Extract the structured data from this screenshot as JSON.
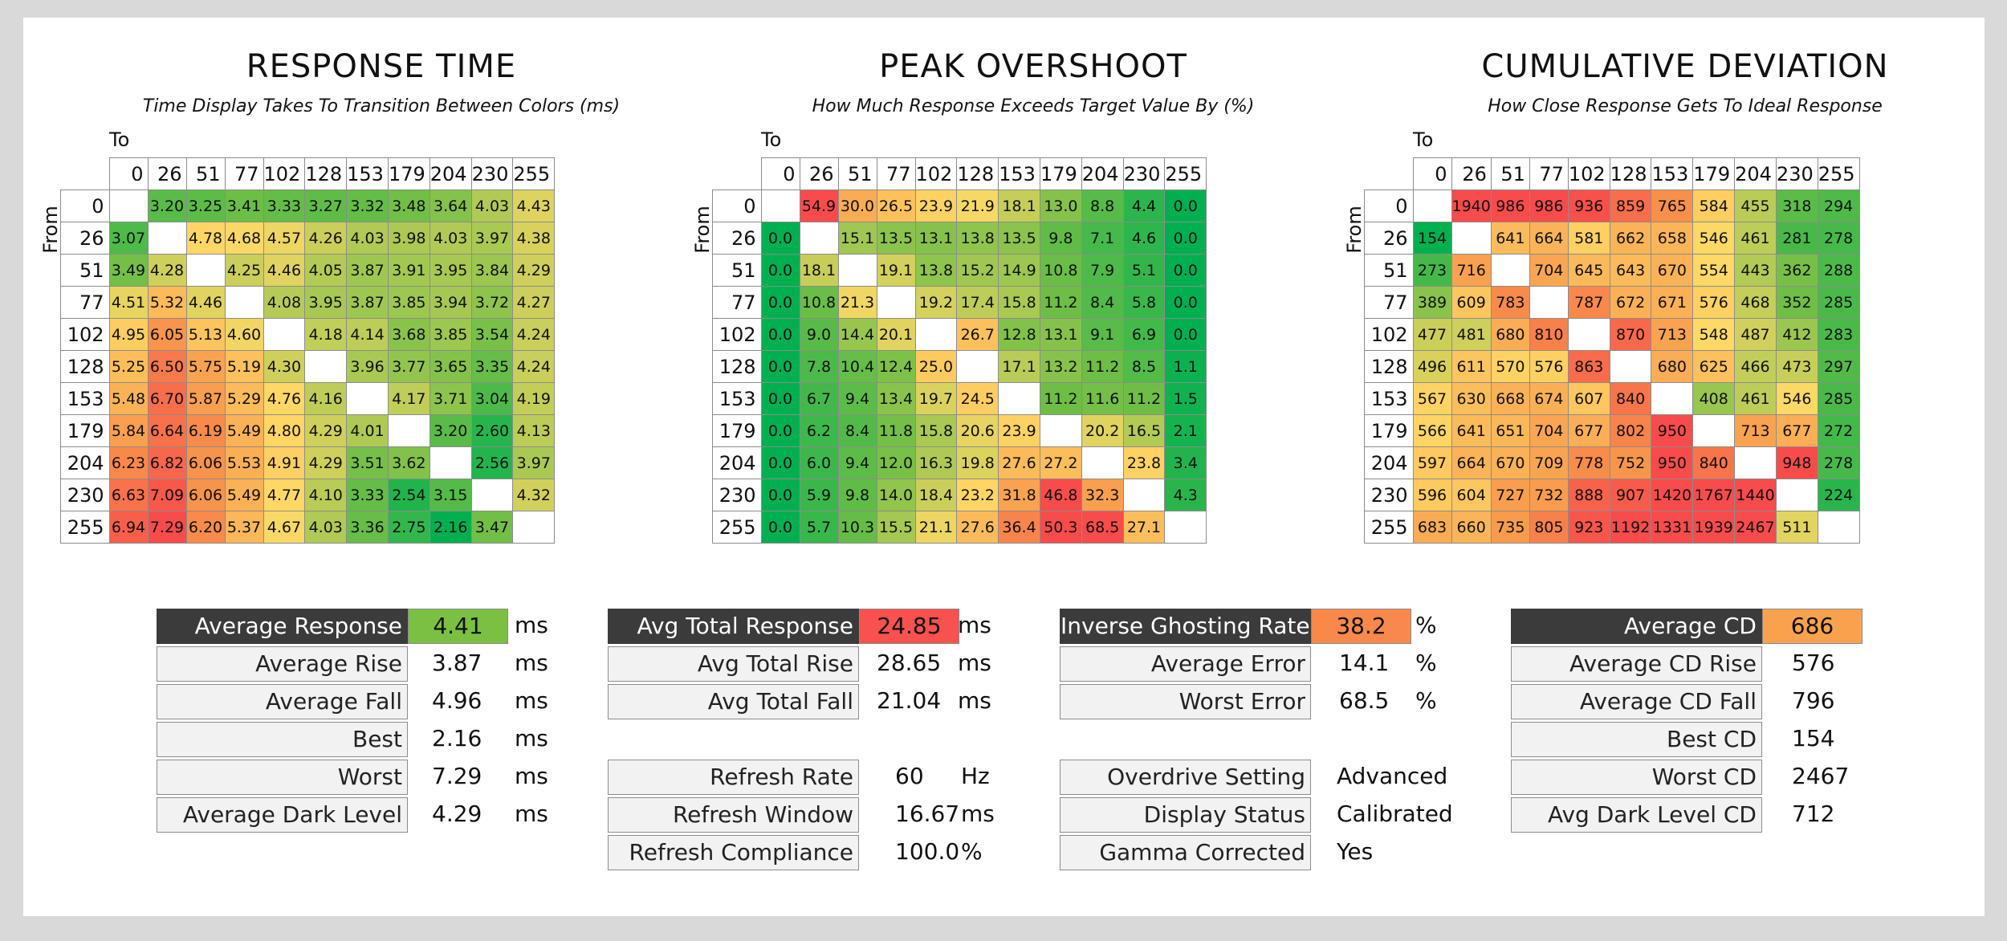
{
  "chart_data": [
    {
      "type": "heatmap",
      "title": "RESPONSE TIME",
      "subtitle": "Time Display Takes To Transition Between Colors (ms)",
      "xlabel": "To",
      "ylabel": "From",
      "categories": [
        "0",
        "26",
        "51",
        "77",
        "102",
        "128",
        "153",
        "179",
        "204",
        "230",
        "255"
      ],
      "values": [
        [
          null,
          "3.20",
          "3.25",
          "3.41",
          "3.33",
          "3.27",
          "3.32",
          "3.48",
          "3.64",
          "4.03",
          "4.43"
        ],
        [
          "3.07",
          null,
          "4.78",
          "4.68",
          "4.57",
          "4.26",
          "4.03",
          "3.98",
          "4.03",
          "3.97",
          "4.38"
        ],
        [
          "3.49",
          "4.28",
          null,
          "4.25",
          "4.46",
          "4.05",
          "3.87",
          "3.91",
          "3.95",
          "3.84",
          "4.29"
        ],
        [
          "4.51",
          "5.32",
          "4.46",
          null,
          "4.08",
          "3.95",
          "3.87",
          "3.85",
          "3.94",
          "3.72",
          "4.27"
        ],
        [
          "4.95",
          "6.05",
          "5.13",
          "4.60",
          null,
          "4.18",
          "4.14",
          "3.68",
          "3.85",
          "3.54",
          "4.24"
        ],
        [
          "5.25",
          "6.50",
          "5.75",
          "5.19",
          "4.30",
          null,
          "3.96",
          "3.77",
          "3.65",
          "3.35",
          "4.24"
        ],
        [
          "5.48",
          "6.70",
          "5.87",
          "5.29",
          "4.76",
          "4.16",
          null,
          "4.17",
          "3.71",
          "3.04",
          "4.19"
        ],
        [
          "5.84",
          "6.64",
          "6.19",
          "5.49",
          "4.80",
          "4.29",
          "4.01",
          null,
          "3.20",
          "2.60",
          "4.13"
        ],
        [
          "6.23",
          "6.82",
          "6.06",
          "5.53",
          "4.91",
          "4.29",
          "3.51",
          "3.62",
          null,
          "2.56",
          "3.97"
        ],
        [
          "6.63",
          "7.09",
          "6.06",
          "5.49",
          "4.77",
          "4.10",
          "3.33",
          "2.54",
          "3.15",
          null,
          "4.32"
        ],
        [
          "6.94",
          "7.29",
          "6.20",
          "5.37",
          "4.67",
          "4.03",
          "3.36",
          "2.75",
          "2.16",
          "3.47",
          null
        ]
      ],
      "scale": {
        "good": 2.16,
        "bad": 7.29
      }
    },
    {
      "type": "heatmap",
      "title": "PEAK OVERSHOOT",
      "subtitle": "How Much Response Exceeds Target Value By (%)",
      "xlabel": "To",
      "ylabel": "From",
      "categories": [
        "0",
        "26",
        "51",
        "77",
        "102",
        "128",
        "153",
        "179",
        "204",
        "230",
        "255"
      ],
      "values": [
        [
          null,
          "54.9",
          "30.0",
          "26.5",
          "23.9",
          "21.9",
          "18.1",
          "13.0",
          "8.8",
          "4.4",
          "0.0"
        ],
        [
          "0.0",
          null,
          "15.1",
          "13.5",
          "13.1",
          "13.8",
          "13.5",
          "9.8",
          "7.1",
          "4.6",
          "0.0"
        ],
        [
          "0.0",
          "18.1",
          null,
          "19.1",
          "13.8",
          "15.2",
          "14.9",
          "10.8",
          "7.9",
          "5.1",
          "0.0"
        ],
        [
          "0.0",
          "10.8",
          "21.3",
          null,
          "19.2",
          "17.4",
          "15.8",
          "11.2",
          "8.4",
          "5.8",
          "0.0"
        ],
        [
          "0.0",
          "9.0",
          "14.4",
          "20.1",
          null,
          "26.7",
          "12.8",
          "13.1",
          "9.1",
          "6.9",
          "0.0"
        ],
        [
          "0.0",
          "7.8",
          "10.4",
          "12.4",
          "25.0",
          null,
          "17.1",
          "13.2",
          "11.2",
          "8.5",
          "1.1"
        ],
        [
          "0.0",
          "6.7",
          "9.4",
          "13.4",
          "19.7",
          "24.5",
          null,
          "11.2",
          "11.6",
          "11.2",
          "1.5"
        ],
        [
          "0.0",
          "6.2",
          "8.4",
          "11.8",
          "15.8",
          "20.6",
          "23.9",
          null,
          "20.2",
          "16.5",
          "2.1"
        ],
        [
          "0.0",
          "6.0",
          "9.4",
          "12.0",
          "16.3",
          "19.8",
          "27.6",
          "27.2",
          null,
          "23.8",
          "3.4"
        ],
        [
          "0.0",
          "5.9",
          "9.8",
          "14.0",
          "18.4",
          "23.2",
          "31.8",
          "46.8",
          "32.3",
          null,
          "4.3"
        ],
        [
          "0.0",
          "5.7",
          "10.3",
          "15.5",
          "21.1",
          "27.6",
          "36.4",
          "50.3",
          "68.5",
          "27.1",
          null
        ]
      ],
      "scale": {
        "good": 0,
        "bad": 45
      }
    },
    {
      "type": "heatmap",
      "title": "CUMULATIVE DEVIATION",
      "subtitle": "How Close Response Gets To Ideal Response",
      "xlabel": "To",
      "ylabel": "From",
      "categories": [
        "0",
        "26",
        "51",
        "77",
        "102",
        "128",
        "153",
        "179",
        "204",
        "230",
        "255"
      ],
      "values": [
        [
          null,
          "1940",
          "986",
          "986",
          "936",
          "859",
          "765",
          "584",
          "455",
          "318",
          "294"
        ],
        [
          "154",
          null,
          "641",
          "664",
          "581",
          "662",
          "658",
          "546",
          "461",
          "281",
          "278"
        ],
        [
          "273",
          "716",
          null,
          "704",
          "645",
          "643",
          "670",
          "554",
          "443",
          "362",
          "288"
        ],
        [
          "389",
          "609",
          "783",
          null,
          "787",
          "672",
          "671",
          "576",
          "468",
          "352",
          "285"
        ],
        [
          "477",
          "481",
          "680",
          "810",
          null,
          "870",
          "713",
          "548",
          "487",
          "412",
          "283"
        ],
        [
          "496",
          "611",
          "570",
          "576",
          "863",
          null,
          "680",
          "625",
          "466",
          "473",
          "297"
        ],
        [
          "567",
          "630",
          "668",
          "674",
          "607",
          "840",
          null,
          "408",
          "461",
          "546",
          "285"
        ],
        [
          "566",
          "641",
          "651",
          "704",
          "677",
          "802",
          "950",
          null,
          "713",
          "677",
          "272"
        ],
        [
          "597",
          "664",
          "670",
          "709",
          "778",
          "752",
          "950",
          "840",
          null,
          "948",
          "278"
        ],
        [
          "596",
          "604",
          "727",
          "732",
          "888",
          "907",
          "1420",
          "1767",
          "1440",
          null,
          "224"
        ],
        [
          "683",
          "660",
          "735",
          "805",
          "923",
          "1192",
          "1331",
          "1939",
          "2467",
          "511",
          null
        ]
      ],
      "scale": {
        "good": 150,
        "bad": 950
      }
    }
  ],
  "stats": {
    "response": [
      {
        "label": "Average Response",
        "value": "4.41",
        "unit": "ms",
        "head": true,
        "color": "#7bc043"
      },
      {
        "label": "Average Rise",
        "value": "3.87",
        "unit": "ms"
      },
      {
        "label": "Average Fall",
        "value": "4.96",
        "unit": "ms"
      },
      {
        "label": "Best",
        "value": "2.16",
        "unit": "ms"
      },
      {
        "label": "Worst",
        "value": "7.29",
        "unit": "ms"
      },
      {
        "label": "Average Dark Level",
        "value": "4.29",
        "unit": "ms"
      }
    ],
    "total": [
      {
        "label": "Avg Total Response",
        "value": "24.85",
        "unit": "ms",
        "head": true,
        "color": "#f8514e"
      },
      {
        "label": "Avg Total Rise",
        "value": "28.65",
        "unit": "ms"
      },
      {
        "label": "Avg Total Fall",
        "value": "21.04",
        "unit": "ms"
      }
    ],
    "refresh": [
      {
        "label": "Refresh Rate",
        "value": "60",
        "unit": "Hz"
      },
      {
        "label": "Refresh Window",
        "value": "16.67",
        "unit": "ms"
      },
      {
        "label": "Refresh Compliance",
        "value": "100.0",
        "unit": "%"
      }
    ],
    "ghosting": [
      {
        "label": "Inverse Ghosting Rate",
        "value": "38.2",
        "unit": "%",
        "head": true,
        "color": "#f8894a"
      },
      {
        "label": "Average Error",
        "value": "14.1",
        "unit": "%"
      },
      {
        "label": "Worst Error",
        "value": "68.5",
        "unit": "%"
      }
    ],
    "settings": [
      {
        "label": "Overdrive Setting",
        "value": "Advanced",
        "unit": ""
      },
      {
        "label": "Display Status",
        "value": "Calibrated",
        "unit": ""
      },
      {
        "label": "Gamma Corrected",
        "value": "Yes",
        "unit": ""
      }
    ],
    "cd": [
      {
        "label": "Average CD",
        "value": "686",
        "unit": "",
        "head": true,
        "color": "#f9a24e"
      },
      {
        "label": "Average CD Rise",
        "value": "576",
        "unit": ""
      },
      {
        "label": "Average CD Fall",
        "value": "796",
        "unit": ""
      },
      {
        "label": "Best CD",
        "value": "154",
        "unit": ""
      },
      {
        "label": "Worst CD",
        "value": "2467",
        "unit": ""
      },
      {
        "label": "Avg Dark Level CD",
        "value": "712",
        "unit": ""
      }
    ]
  }
}
